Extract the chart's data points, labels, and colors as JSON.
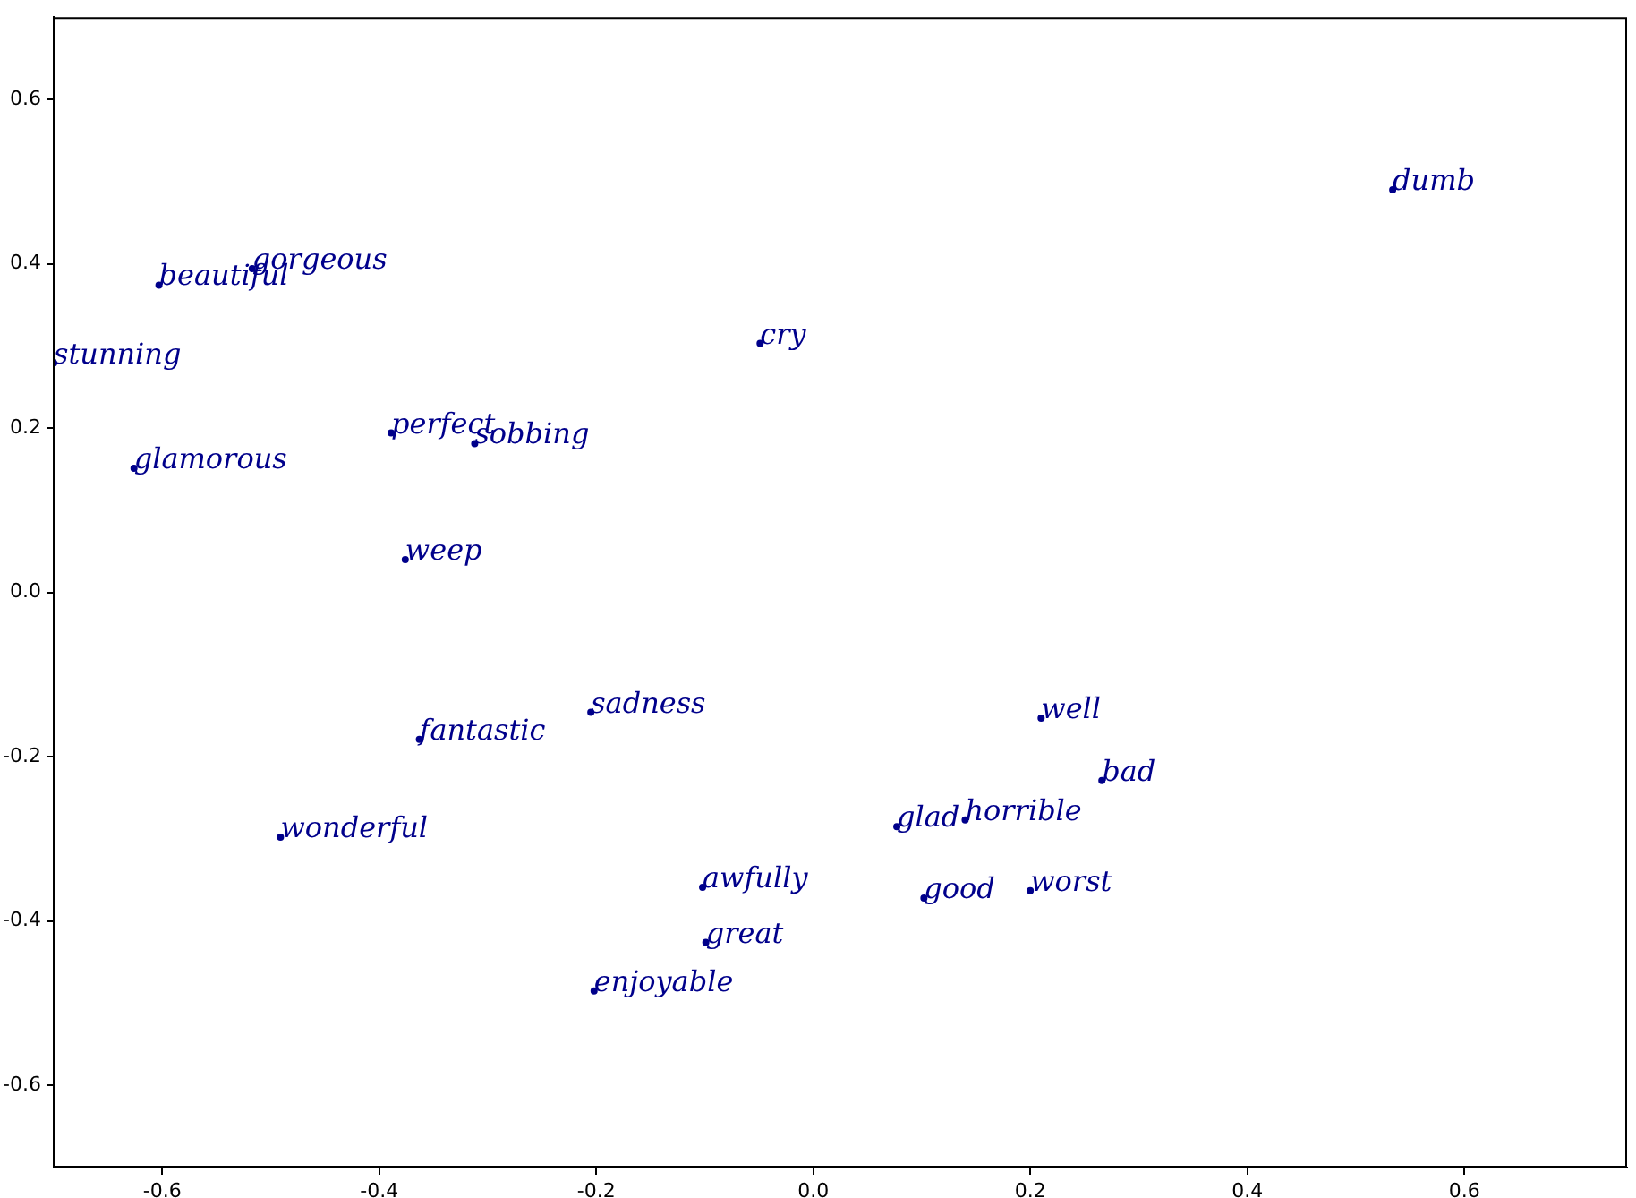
{
  "chart_data": {
    "type": "scatter",
    "marker": "circle",
    "grid": false,
    "legend": false,
    "xlim": [
      -0.7,
      0.75
    ],
    "ylim": [
      -0.7,
      0.7
    ],
    "xticks": [
      -0.6,
      -0.4,
      -0.2,
      {
        "value": 0,
        "label": "0.0"
      },
      0.2,
      0.4,
      0.6
    ],
    "yticks": [
      -0.6,
      -0.4,
      -0.2,
      {
        "value": 0,
        "label": "0.0"
      },
      0.2,
      0.4,
      0.6
    ],
    "series": [
      {
        "color": "#00008b",
        "x": [
          0.534,
          -0.603,
          -0.517,
          -0.7,
          -0.049,
          -0.389,
          -0.312,
          -0.626,
          -0.376,
          -0.205,
          -0.363,
          0.21,
          0.266,
          0.077,
          0.14,
          -0.491,
          -0.102,
          0.102,
          0.2,
          -0.099,
          -0.202
        ],
        "values": [
          0.49,
          0.374,
          0.394,
          0.279,
          0.303,
          0.194,
          0.181,
          0.151,
          0.04,
          -0.146,
          -0.179,
          -0.153,
          -0.229,
          -0.285,
          -0.277,
          -0.298,
          -0.359,
          -0.372,
          -0.363,
          -0.426,
          -0.485
        ],
        "value_labels": [
          "dumb",
          "beautiful",
          "gorgeous",
          "stunning",
          "cry",
          "perfect",
          "sobbing",
          "glamorous",
          "weep",
          "sadness",
          "fantastic",
          "well",
          "bad",
          "glad",
          "horrible",
          "wonderful",
          "awfully",
          "good",
          "worst",
          "great",
          "enjoyable"
        ]
      }
    ]
  }
}
